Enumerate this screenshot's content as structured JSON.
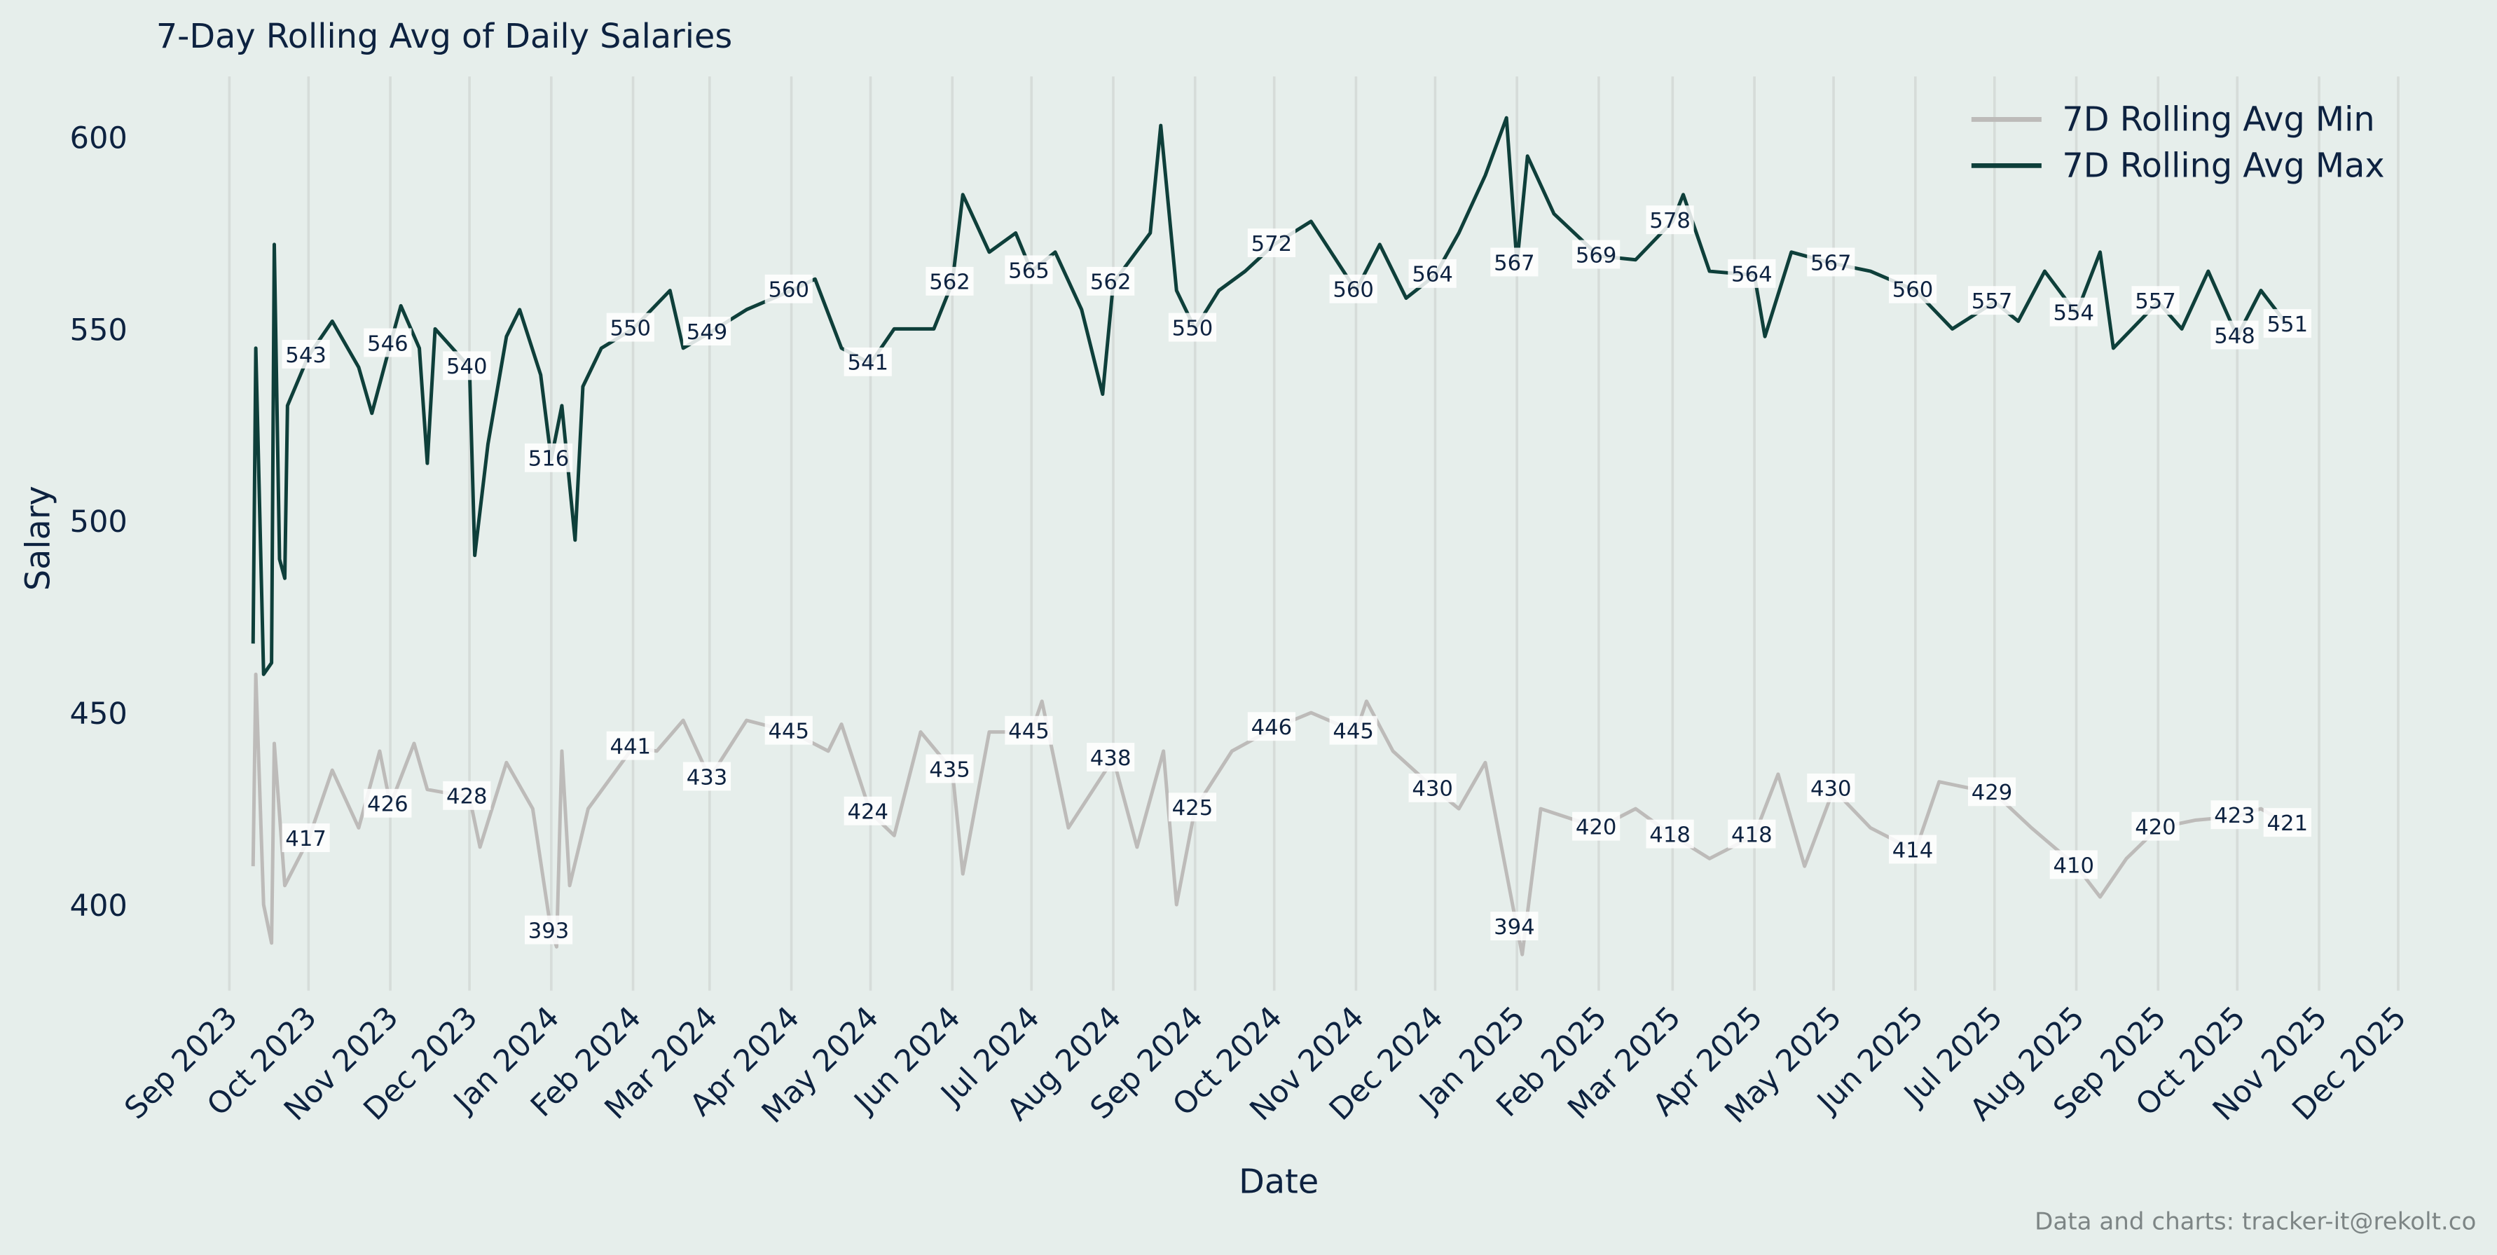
{
  "chart_data": {
    "type": "line",
    "title": "7-Day Rolling Avg of Daily Salaries",
    "xlabel": "Date",
    "ylabel": "Salary",
    "xlim": [
      "2023-08-25",
      "2025-12-05"
    ],
    "ylim": [
      378,
      614
    ],
    "yticks": [
      400,
      450,
      500,
      550,
      600
    ],
    "xticks": [
      "Sep 2023",
      "Oct 2023",
      "Nov 2023",
      "Dec 2023",
      "Jan 2024",
      "Feb 2024",
      "Mar 2024",
      "Apr 2024",
      "May 2024",
      "Jun 2024",
      "Jul 2024",
      "Aug 2024",
      "Sep 2024",
      "Oct 2024",
      "Nov 2024",
      "Dec 2024",
      "Jan 2025",
      "Feb 2025",
      "Mar 2025",
      "Apr 2025",
      "May 2025",
      "Jun 2025",
      "Jul 2025",
      "Aug 2025",
      "Sep 2025",
      "Oct 2025",
      "Nov 2025",
      "Dec 2025"
    ],
    "xtick_dates": [
      "2023-09-01",
      "2023-10-01",
      "2023-11-01",
      "2023-12-01",
      "2024-01-01",
      "2024-02-01",
      "2024-03-01",
      "2024-04-01",
      "2024-05-01",
      "2024-06-01",
      "2024-07-01",
      "2024-08-01",
      "2024-09-01",
      "2024-10-01",
      "2024-11-01",
      "2024-12-01",
      "2025-01-01",
      "2025-02-01",
      "2025-03-01",
      "2025-04-01",
      "2025-05-01",
      "2025-06-01",
      "2025-07-01",
      "2025-08-01",
      "2025-09-01",
      "2025-10-01",
      "2025-11-01",
      "2025-12-01"
    ],
    "grid": "vertical",
    "legend": "top-right",
    "series": [
      {
        "name": "7D Rolling Avg Min",
        "color": "#bdbbb9",
        "points": [
          [
            "2023-09-10",
            410
          ],
          [
            "2023-09-11",
            460
          ],
          [
            "2023-09-14",
            400
          ],
          [
            "2023-09-17",
            390
          ],
          [
            "2023-09-18",
            442
          ],
          [
            "2023-09-22",
            405
          ],
          [
            "2023-10-01",
            417
          ],
          [
            "2023-10-10",
            435
          ],
          [
            "2023-10-20",
            420
          ],
          [
            "2023-10-28",
            440
          ],
          [
            "2023-11-01",
            426
          ],
          [
            "2023-11-10",
            442
          ],
          [
            "2023-11-15",
            430
          ],
          [
            "2023-12-01",
            428
          ],
          [
            "2023-12-05",
            415
          ],
          [
            "2023-12-15",
            437
          ],
          [
            "2023-12-25",
            425
          ],
          [
            "2024-01-01",
            393
          ],
          [
            "2024-01-03",
            389
          ],
          [
            "2024-01-05",
            440
          ],
          [
            "2024-01-08",
            405
          ],
          [
            "2024-01-15",
            425
          ],
          [
            "2024-02-01",
            441
          ],
          [
            "2024-02-10",
            440
          ],
          [
            "2024-02-20",
            448
          ],
          [
            "2024-03-01",
            433
          ],
          [
            "2024-03-15",
            448
          ],
          [
            "2024-04-01",
            445
          ],
          [
            "2024-04-15",
            440
          ],
          [
            "2024-04-20",
            447
          ],
          [
            "2024-05-01",
            424
          ],
          [
            "2024-05-10",
            418
          ],
          [
            "2024-05-20",
            445
          ],
          [
            "2024-06-01",
            435
          ],
          [
            "2024-06-05",
            408
          ],
          [
            "2024-06-15",
            445
          ],
          [
            "2024-07-01",
            445
          ],
          [
            "2024-07-05",
            453
          ],
          [
            "2024-07-15",
            420
          ],
          [
            "2024-08-01",
            438
          ],
          [
            "2024-08-10",
            415
          ],
          [
            "2024-08-20",
            440
          ],
          [
            "2024-08-25",
            400
          ],
          [
            "2024-09-01",
            425
          ],
          [
            "2024-09-15",
            440
          ],
          [
            "2024-10-01",
            446
          ],
          [
            "2024-10-15",
            450
          ],
          [
            "2024-11-01",
            445
          ],
          [
            "2024-11-05",
            453
          ],
          [
            "2024-11-15",
            440
          ],
          [
            "2024-12-01",
            430
          ],
          [
            "2024-12-10",
            425
          ],
          [
            "2024-12-20",
            437
          ],
          [
            "2025-01-01",
            394
          ],
          [
            "2025-01-03",
            387
          ],
          [
            "2025-01-10",
            425
          ],
          [
            "2025-02-01",
            420
          ],
          [
            "2025-02-15",
            425
          ],
          [
            "2025-03-01",
            418
          ],
          [
            "2025-03-15",
            412
          ],
          [
            "2025-04-01",
            418
          ],
          [
            "2025-04-10",
            434
          ],
          [
            "2025-04-20",
            410
          ],
          [
            "2025-05-01",
            430
          ],
          [
            "2025-05-15",
            420
          ],
          [
            "2025-06-01",
            414
          ],
          [
            "2025-06-10",
            432
          ],
          [
            "2025-07-01",
            429
          ],
          [
            "2025-07-15",
            420
          ],
          [
            "2025-08-01",
            410
          ],
          [
            "2025-08-10",
            402
          ],
          [
            "2025-08-20",
            412
          ],
          [
            "2025-09-01",
            420
          ],
          [
            "2025-09-15",
            422
          ],
          [
            "2025-10-01",
            423
          ],
          [
            "2025-10-10",
            425
          ],
          [
            "2025-10-20",
            421
          ]
        ],
        "annotations": [
          [
            "2023-09-30",
            417
          ],
          [
            "2023-10-31",
            426
          ],
          [
            "2023-11-30",
            428
          ],
          [
            "2023-12-31",
            393
          ],
          [
            "2024-01-31",
            441
          ],
          [
            "2024-02-29",
            433
          ],
          [
            "2024-03-31",
            445
          ],
          [
            "2024-04-30",
            424
          ],
          [
            "2024-05-31",
            435
          ],
          [
            "2024-06-30",
            445
          ],
          [
            "2024-07-31",
            438
          ],
          [
            "2024-08-31",
            425
          ],
          [
            "2024-09-30",
            446
          ],
          [
            "2024-10-31",
            445
          ],
          [
            "2024-11-30",
            430
          ],
          [
            "2024-12-31",
            394
          ],
          [
            "2025-01-31",
            420
          ],
          [
            "2025-02-28",
            418
          ],
          [
            "2025-03-31",
            418
          ],
          [
            "2025-04-30",
            430
          ],
          [
            "2025-05-31",
            414
          ],
          [
            "2025-06-30",
            429
          ],
          [
            "2025-07-31",
            410
          ],
          [
            "2025-08-31",
            420
          ],
          [
            "2025-09-30",
            423
          ],
          [
            "2025-10-20",
            421
          ]
        ]
      },
      {
        "name": "7D Rolling Avg Max",
        "color": "#0e3f3a",
        "points": [
          [
            "2023-09-10",
            468
          ],
          [
            "2023-09-11",
            545
          ],
          [
            "2023-09-14",
            460
          ],
          [
            "2023-09-17",
            463
          ],
          [
            "2023-09-18",
            572
          ],
          [
            "2023-09-20",
            490
          ],
          [
            "2023-09-22",
            485
          ],
          [
            "2023-09-23",
            530
          ],
          [
            "2023-10-01",
            543
          ],
          [
            "2023-10-10",
            552
          ],
          [
            "2023-10-20",
            540
          ],
          [
            "2023-10-25",
            528
          ],
          [
            "2023-11-01",
            546
          ],
          [
            "2023-11-05",
            556
          ],
          [
            "2023-11-12",
            545
          ],
          [
            "2023-11-15",
            515
          ],
          [
            "2023-11-18",
            550
          ],
          [
            "2023-12-01",
            540
          ],
          [
            "2023-12-03",
            491
          ],
          [
            "2023-12-08",
            520
          ],
          [
            "2023-12-15",
            548
          ],
          [
            "2023-12-20",
            555
          ],
          [
            "2023-12-28",
            538
          ],
          [
            "2024-01-01",
            516
          ],
          [
            "2024-01-05",
            530
          ],
          [
            "2024-01-10",
            495
          ],
          [
            "2024-01-13",
            535
          ],
          [
            "2024-01-20",
            545
          ],
          [
            "2024-02-01",
            550
          ],
          [
            "2024-02-15",
            560
          ],
          [
            "2024-02-20",
            545
          ],
          [
            "2024-03-01",
            549
          ],
          [
            "2024-03-15",
            555
          ],
          [
            "2024-04-01",
            560
          ],
          [
            "2024-04-10",
            563
          ],
          [
            "2024-04-20",
            545
          ],
          [
            "2024-05-01",
            541
          ],
          [
            "2024-05-10",
            550
          ],
          [
            "2024-05-25",
            550
          ],
          [
            "2024-06-01",
            562
          ],
          [
            "2024-06-05",
            585
          ],
          [
            "2024-06-15",
            570
          ],
          [
            "2024-06-25",
            575
          ],
          [
            "2024-07-01",
            565
          ],
          [
            "2024-07-10",
            570
          ],
          [
            "2024-07-20",
            555
          ],
          [
            "2024-07-28",
            533
          ],
          [
            "2024-08-01",
            562
          ],
          [
            "2024-08-15",
            575
          ],
          [
            "2024-08-19",
            603
          ],
          [
            "2024-08-25",
            560
          ],
          [
            "2024-09-01",
            550
          ],
          [
            "2024-09-10",
            560
          ],
          [
            "2024-09-20",
            565
          ],
          [
            "2024-10-01",
            572
          ],
          [
            "2024-10-15",
            578
          ],
          [
            "2024-11-01",
            560
          ],
          [
            "2024-11-10",
            572
          ],
          [
            "2024-11-20",
            558
          ],
          [
            "2024-12-01",
            564
          ],
          [
            "2024-12-10",
            575
          ],
          [
            "2024-12-20",
            590
          ],
          [
            "2024-12-28",
            605
          ],
          [
            "2025-01-01",
            567
          ],
          [
            "2025-01-05",
            595
          ],
          [
            "2025-01-15",
            580
          ],
          [
            "2025-02-01",
            569
          ],
          [
            "2025-02-15",
            568
          ],
          [
            "2025-03-01",
            578
          ],
          [
            "2025-03-05",
            585
          ],
          [
            "2025-03-15",
            565
          ],
          [
            "2025-04-01",
            564
          ],
          [
            "2025-04-05",
            548
          ],
          [
            "2025-04-15",
            570
          ],
          [
            "2025-05-01",
            567
          ],
          [
            "2025-05-15",
            565
          ],
          [
            "2025-06-01",
            560
          ],
          [
            "2025-06-15",
            550
          ],
          [
            "2025-07-01",
            557
          ],
          [
            "2025-07-10",
            552
          ],
          [
            "2025-07-20",
            565
          ],
          [
            "2025-08-01",
            554
          ],
          [
            "2025-08-10",
            570
          ],
          [
            "2025-08-15",
            545
          ],
          [
            "2025-09-01",
            557
          ],
          [
            "2025-09-10",
            550
          ],
          [
            "2025-09-20",
            565
          ],
          [
            "2025-10-01",
            548
          ],
          [
            "2025-10-10",
            560
          ],
          [
            "2025-10-20",
            551
          ]
        ],
        "annotations": [
          [
            "2023-09-30",
            543
          ],
          [
            "2023-10-31",
            546
          ],
          [
            "2023-11-30",
            540
          ],
          [
            "2023-12-31",
            516
          ],
          [
            "2024-01-31",
            550
          ],
          [
            "2024-02-29",
            549
          ],
          [
            "2024-03-31",
            560
          ],
          [
            "2024-04-30",
            541
          ],
          [
            "2024-05-31",
            562
          ],
          [
            "2024-06-30",
            565
          ],
          [
            "2024-07-31",
            562
          ],
          [
            "2024-08-31",
            550
          ],
          [
            "2024-09-30",
            572
          ],
          [
            "2024-10-31",
            560
          ],
          [
            "2024-11-30",
            564
          ],
          [
            "2024-12-31",
            567
          ],
          [
            "2025-01-31",
            569
          ],
          [
            "2025-02-28",
            578
          ],
          [
            "2025-03-31",
            564
          ],
          [
            "2025-04-30",
            567
          ],
          [
            "2025-05-31",
            560
          ],
          [
            "2025-06-30",
            557
          ],
          [
            "2025-07-31",
            554
          ],
          [
            "2025-08-31",
            557
          ],
          [
            "2025-09-30",
            548
          ],
          [
            "2025-10-20",
            551
          ]
        ]
      }
    ],
    "footer": "Data and charts: tracker-it@rekolt.co"
  }
}
